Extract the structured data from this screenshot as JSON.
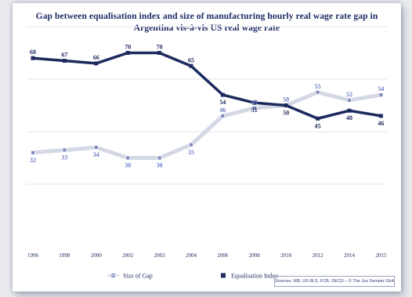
{
  "colors": {
    "equalisation": "#1d2a5e",
    "gap": "#d3d8e4",
    "gap_marker": "#7e8ac0",
    "label_gap": "#6e7dc2",
    "label_eq": "#1d2a5e",
    "axis_text": "#1d2a5e",
    "grid": "#e4e6ec"
  },
  "chart_data": {
    "type": "line",
    "title_line1": "Gap between equalisation index and size of manufacturing hourly real wage rate gap in",
    "title_line2": "Argentina vis-à-vis US real wage rate",
    "categories": [
      "1996",
      "1998",
      "2000",
      "2002",
      "2003",
      "2004",
      "2006",
      "2008",
      "2010",
      "2012",
      "2014",
      "2015"
    ],
    "ylim": [
      0,
      80
    ],
    "grid": true,
    "legend_position": "bottom",
    "series": [
      {
        "name": "Size of Gap",
        "values": [
          32,
          33,
          34,
          30,
          30,
          35,
          46,
          49,
          50,
          55,
          52,
          54
        ],
        "labels": [
          "32",
          "33",
          "34",
          "30",
          "30",
          "35",
          "46",
          "49",
          "50",
          "55",
          "52",
          "54"
        ]
      },
      {
        "name": "Equalisation Index",
        "values": [
          68,
          67,
          66,
          70,
          70,
          65,
          54,
          51,
          50,
          45,
          48,
          46
        ],
        "labels": [
          "68",
          "67",
          "66",
          "70",
          "70",
          "65",
          "54",
          "51",
          "50",
          "45",
          "48",
          "46"
        ]
      }
    ],
    "source": "Sources: WB, US BLS, FCB, OECD – © The Jus Semper Global Alliance"
  }
}
